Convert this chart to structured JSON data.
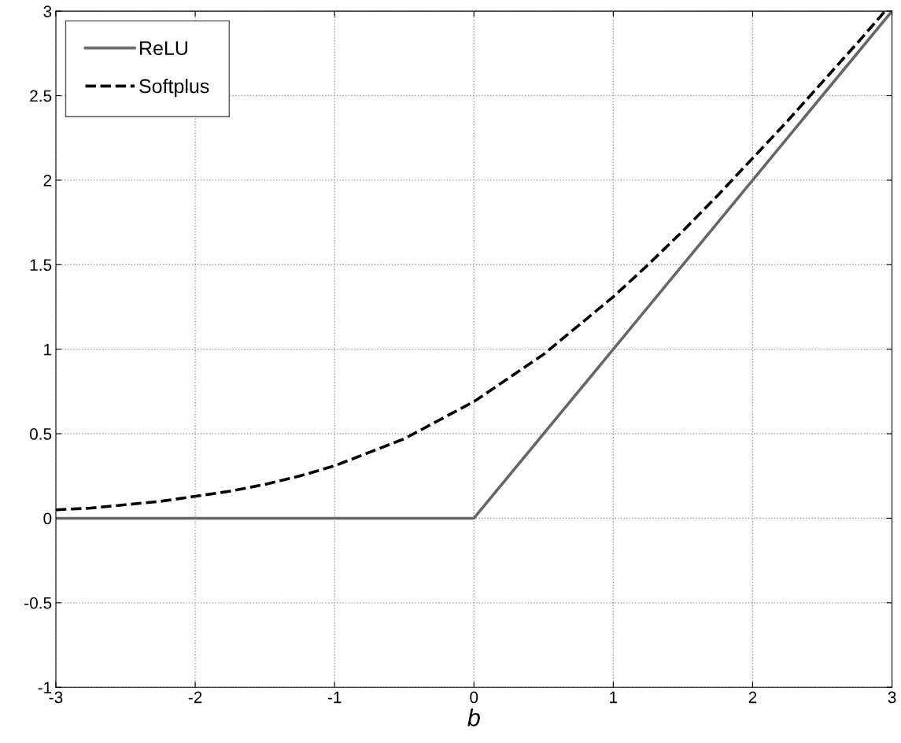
{
  "chart_data": {
    "type": "line",
    "xlabel": "b",
    "xlim": [
      -3,
      3
    ],
    "ylim": [
      -1,
      3
    ],
    "xticks": [
      -3,
      -2,
      -1,
      0,
      1,
      2,
      3
    ],
    "yticks": [
      -1,
      -0.5,
      0,
      0.5,
      1,
      1.5,
      2,
      2.5,
      3
    ],
    "grid": true,
    "legend": "top left",
    "marker": "none",
    "series": [
      {
        "name": "ReLU",
        "color": "#666666",
        "line_style": "solid",
        "x": [
          -3,
          0,
          3
        ],
        "values": [
          0,
          0,
          3
        ]
      },
      {
        "name": "Softplus",
        "color": "#000000",
        "line_style": "dashed",
        "x": [
          -3,
          -2.75,
          -2.5,
          -2.25,
          -2,
          -1.75,
          -1.5,
          -1.25,
          -1,
          -0.75,
          -0.5,
          -0.25,
          0,
          0.25,
          0.5,
          0.75,
          1,
          1.25,
          1.5,
          1.75,
          2,
          2.25,
          2.5,
          2.75,
          2.95
        ],
        "values": [
          0.05,
          0.06,
          0.08,
          0.1,
          0.13,
          0.16,
          0.2,
          0.25,
          0.31,
          0.39,
          0.47,
          0.58,
          0.69,
          0.83,
          0.97,
          1.14,
          1.31,
          1.5,
          1.7,
          1.91,
          2.13,
          2.35,
          2.58,
          2.81,
          3.0
        ]
      }
    ]
  }
}
